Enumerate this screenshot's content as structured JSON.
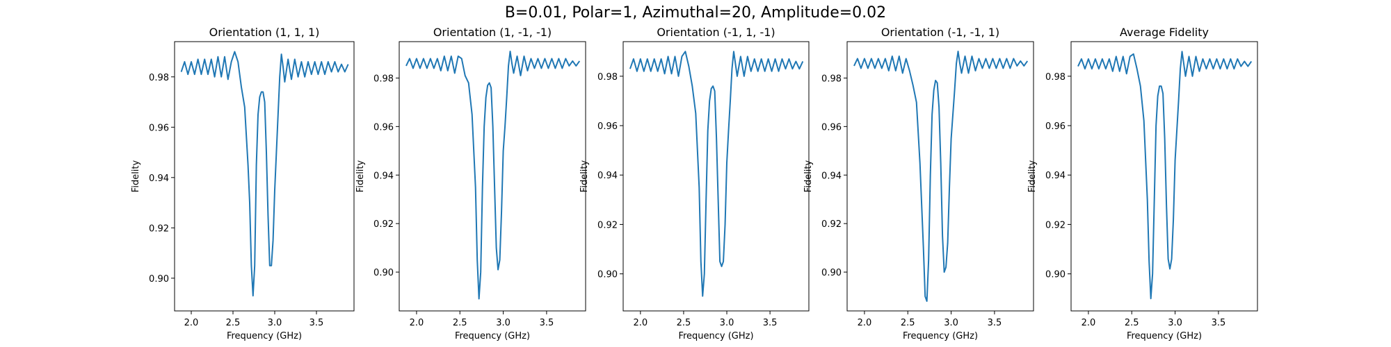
{
  "figure": {
    "suptitle": "B=0.01, Polar=1, Azimuthal=20, Amplitude=0.02"
  },
  "chart_data": [
    {
      "type": "line",
      "title": "Orientation (1, 1, 1)",
      "xlabel": "Frequency (GHz)",
      "ylabel": "Fidelity",
      "xlim": [
        1.8,
        3.95
      ],
      "ylim": [
        0.887,
        0.994
      ],
      "xticks": [
        2.0,
        2.5,
        3.0,
        3.5
      ],
      "yticks": [
        0.9,
        0.92,
        0.94,
        0.96,
        0.98
      ],
      "grid": false,
      "color": "#1f77b4",
      "series": [
        {
          "x": [
            1.88,
            1.92,
            1.96,
            2.0,
            2.04,
            2.08,
            2.12,
            2.16,
            2.2,
            2.24,
            2.28,
            2.32,
            2.36,
            2.4,
            2.44,
            2.48,
            2.52,
            2.56,
            2.6,
            2.64,
            2.68,
            2.7,
            2.72,
            2.74,
            2.76,
            2.78,
            2.8,
            2.82,
            2.84,
            2.86,
            2.88,
            2.9,
            2.92,
            2.94,
            2.96,
            2.98,
            3.0,
            3.02,
            3.04,
            3.06,
            3.08,
            3.1,
            3.12,
            3.16,
            3.2,
            3.24,
            3.28,
            3.32,
            3.36,
            3.4,
            3.44,
            3.48,
            3.52,
            3.56,
            3.6,
            3.64,
            3.68,
            3.72,
            3.76,
            3.8,
            3.84,
            3.88
          ],
          "y": [
            0.982,
            0.986,
            0.981,
            0.986,
            0.981,
            0.987,
            0.981,
            0.987,
            0.981,
            0.987,
            0.98,
            0.988,
            0.98,
            0.988,
            0.979,
            0.986,
            0.99,
            0.986,
            0.976,
            0.968,
            0.945,
            0.93,
            0.905,
            0.893,
            0.905,
            0.945,
            0.965,
            0.972,
            0.974,
            0.974,
            0.97,
            0.95,
            0.925,
            0.905,
            0.905,
            0.915,
            0.935,
            0.95,
            0.965,
            0.98,
            0.989,
            0.984,
            0.978,
            0.987,
            0.979,
            0.987,
            0.98,
            0.986,
            0.98,
            0.986,
            0.981,
            0.986,
            0.981,
            0.986,
            0.981,
            0.986,
            0.982,
            0.986,
            0.982,
            0.985,
            0.982,
            0.985
          ]
        }
      ]
    },
    {
      "type": "line",
      "title": "Orientation (1, -1, -1)",
      "xlabel": "Frequency (GHz)",
      "ylabel": "Fidelity",
      "xlim": [
        1.8,
        3.95
      ],
      "ylim": [
        0.884,
        0.995
      ],
      "xticks": [
        2.0,
        2.5,
        3.0,
        3.5
      ],
      "yticks": [
        0.9,
        0.92,
        0.94,
        0.96,
        0.98
      ],
      "grid": false,
      "color": "#1f77b4",
      "series": [
        {
          "x": [
            1.88,
            1.92,
            1.96,
            2.0,
            2.04,
            2.08,
            2.12,
            2.16,
            2.2,
            2.24,
            2.28,
            2.32,
            2.36,
            2.4,
            2.44,
            2.48,
            2.52,
            2.56,
            2.6,
            2.64,
            2.68,
            2.7,
            2.72,
            2.74,
            2.76,
            2.78,
            2.8,
            2.82,
            2.84,
            2.86,
            2.88,
            2.9,
            2.92,
            2.94,
            2.96,
            2.98,
            3.0,
            3.02,
            3.04,
            3.06,
            3.08,
            3.1,
            3.12,
            3.16,
            3.2,
            3.24,
            3.28,
            3.32,
            3.36,
            3.4,
            3.44,
            3.48,
            3.52,
            3.56,
            3.6,
            3.64,
            3.68,
            3.72,
            3.76,
            3.8,
            3.84,
            3.88
          ],
          "y": [
            0.985,
            0.988,
            0.984,
            0.988,
            0.984,
            0.988,
            0.984,
            0.988,
            0.984,
            0.988,
            0.983,
            0.989,
            0.983,
            0.989,
            0.982,
            0.989,
            0.988,
            0.981,
            0.978,
            0.965,
            0.935,
            0.905,
            0.889,
            0.9,
            0.935,
            0.96,
            0.972,
            0.977,
            0.978,
            0.976,
            0.96,
            0.935,
            0.91,
            0.901,
            0.905,
            0.925,
            0.95,
            0.96,
            0.972,
            0.985,
            0.991,
            0.986,
            0.982,
            0.989,
            0.981,
            0.989,
            0.983,
            0.988,
            0.984,
            0.988,
            0.984,
            0.988,
            0.984,
            0.988,
            0.984,
            0.988,
            0.984,
            0.988,
            0.985,
            0.987,
            0.985,
            0.987
          ]
        }
      ]
    },
    {
      "type": "line",
      "title": "Orientation (-1, 1, -1)",
      "xlabel": "Frequency (GHz)",
      "ylabel": "Fidelity",
      "xlim": [
        1.8,
        3.95
      ],
      "ylim": [
        0.885,
        0.994
      ],
      "xticks": [
        2.0,
        2.5,
        3.0,
        3.5
      ],
      "yticks": [
        0.9,
        0.92,
        0.94,
        0.96,
        0.98
      ],
      "grid": false,
      "color": "#1f77b4",
      "series": [
        {
          "x": [
            1.88,
            1.92,
            1.96,
            2.0,
            2.04,
            2.08,
            2.12,
            2.16,
            2.2,
            2.24,
            2.28,
            2.32,
            2.36,
            2.4,
            2.44,
            2.48,
            2.52,
            2.56,
            2.6,
            2.64,
            2.68,
            2.7,
            2.72,
            2.74,
            2.76,
            2.78,
            2.8,
            2.82,
            2.84,
            2.86,
            2.88,
            2.9,
            2.92,
            2.94,
            2.96,
            2.98,
            3.0,
            3.02,
            3.04,
            3.06,
            3.08,
            3.1,
            3.12,
            3.16,
            3.2,
            3.24,
            3.28,
            3.32,
            3.36,
            3.4,
            3.44,
            3.48,
            3.52,
            3.56,
            3.6,
            3.64,
            3.68,
            3.72,
            3.76,
            3.8,
            3.84,
            3.88
          ],
          "y": [
            0.983,
            0.987,
            0.982,
            0.987,
            0.982,
            0.987,
            0.982,
            0.987,
            0.982,
            0.987,
            0.981,
            0.988,
            0.981,
            0.988,
            0.98,
            0.988,
            0.99,
            0.984,
            0.976,
            0.965,
            0.935,
            0.905,
            0.891,
            0.9,
            0.93,
            0.958,
            0.97,
            0.975,
            0.976,
            0.974,
            0.955,
            0.93,
            0.905,
            0.903,
            0.905,
            0.92,
            0.945,
            0.958,
            0.97,
            0.983,
            0.99,
            0.985,
            0.98,
            0.988,
            0.98,
            0.988,
            0.982,
            0.987,
            0.982,
            0.987,
            0.982,
            0.987,
            0.982,
            0.987,
            0.982,
            0.987,
            0.983,
            0.987,
            0.983,
            0.986,
            0.983,
            0.986
          ]
        }
      ]
    },
    {
      "type": "line",
      "title": "Orientation (-1, -1, 1)",
      "xlabel": "Frequency (GHz)",
      "ylabel": "Fidelity",
      "xlim": [
        1.8,
        3.95
      ],
      "ylim": [
        0.884,
        0.995
      ],
      "xticks": [
        2.0,
        2.5,
        3.0,
        3.5
      ],
      "yticks": [
        0.9,
        0.92,
        0.94,
        0.96,
        0.98
      ],
      "grid": false,
      "color": "#1f77b4",
      "series": [
        {
          "x": [
            1.88,
            1.92,
            1.96,
            2.0,
            2.04,
            2.08,
            2.12,
            2.16,
            2.2,
            2.24,
            2.28,
            2.32,
            2.36,
            2.4,
            2.44,
            2.48,
            2.52,
            2.56,
            2.6,
            2.64,
            2.68,
            2.7,
            2.72,
            2.74,
            2.76,
            2.78,
            2.8,
            2.82,
            2.84,
            2.86,
            2.88,
            2.9,
            2.92,
            2.94,
            2.96,
            2.98,
            3.0,
            3.02,
            3.04,
            3.06,
            3.08,
            3.1,
            3.12,
            3.16,
            3.2,
            3.24,
            3.28,
            3.32,
            3.36,
            3.4,
            3.44,
            3.48,
            3.52,
            3.56,
            3.6,
            3.64,
            3.68,
            3.72,
            3.76,
            3.8,
            3.84,
            3.88
          ],
          "y": [
            0.985,
            0.988,
            0.984,
            0.988,
            0.984,
            0.988,
            0.984,
            0.988,
            0.984,
            0.988,
            0.983,
            0.989,
            0.983,
            0.989,
            0.982,
            0.988,
            0.983,
            0.977,
            0.97,
            0.945,
            0.91,
            0.89,
            0.888,
            0.905,
            0.94,
            0.965,
            0.975,
            0.979,
            0.978,
            0.968,
            0.945,
            0.915,
            0.9,
            0.902,
            0.912,
            0.935,
            0.955,
            0.965,
            0.975,
            0.986,
            0.991,
            0.986,
            0.982,
            0.989,
            0.982,
            0.989,
            0.983,
            0.988,
            0.984,
            0.988,
            0.984,
            0.988,
            0.984,
            0.988,
            0.984,
            0.988,
            0.984,
            0.988,
            0.985,
            0.987,
            0.985,
            0.987
          ]
        }
      ]
    },
    {
      "type": "line",
      "title": "Average Fidelity",
      "xlabel": "Frequency (GHz)",
      "ylabel": "Fidelity",
      "xlim": [
        1.8,
        3.95
      ],
      "ylim": [
        0.885,
        0.994
      ],
      "xticks": [
        2.0,
        2.5,
        3.0,
        3.5
      ],
      "yticks": [
        0.9,
        0.92,
        0.94,
        0.96,
        0.98
      ],
      "grid": false,
      "color": "#1f77b4",
      "series": [
        {
          "x": [
            1.88,
            1.92,
            1.96,
            2.0,
            2.04,
            2.08,
            2.12,
            2.16,
            2.2,
            2.24,
            2.28,
            2.32,
            2.36,
            2.4,
            2.44,
            2.48,
            2.52,
            2.56,
            2.6,
            2.64,
            2.68,
            2.7,
            2.72,
            2.74,
            2.76,
            2.78,
            2.8,
            2.82,
            2.84,
            2.86,
            2.88,
            2.9,
            2.92,
            2.94,
            2.96,
            2.98,
            3.0,
            3.02,
            3.04,
            3.06,
            3.08,
            3.1,
            3.12,
            3.16,
            3.2,
            3.24,
            3.28,
            3.32,
            3.36,
            3.4,
            3.44,
            3.48,
            3.52,
            3.56,
            3.6,
            3.64,
            3.68,
            3.72,
            3.76,
            3.8,
            3.84,
            3.88
          ],
          "y": [
            0.984,
            0.987,
            0.983,
            0.987,
            0.983,
            0.987,
            0.983,
            0.987,
            0.983,
            0.987,
            0.982,
            0.988,
            0.982,
            0.988,
            0.981,
            0.988,
            0.989,
            0.983,
            0.976,
            0.962,
            0.93,
            0.905,
            0.89,
            0.9,
            0.93,
            0.96,
            0.972,
            0.976,
            0.976,
            0.973,
            0.955,
            0.928,
            0.906,
            0.902,
            0.906,
            0.922,
            0.946,
            0.958,
            0.97,
            0.983,
            0.99,
            0.985,
            0.98,
            0.988,
            0.98,
            0.988,
            0.982,
            0.987,
            0.983,
            0.987,
            0.983,
            0.987,
            0.983,
            0.987,
            0.983,
            0.987,
            0.983,
            0.987,
            0.984,
            0.986,
            0.984,
            0.986
          ]
        }
      ]
    }
  ]
}
